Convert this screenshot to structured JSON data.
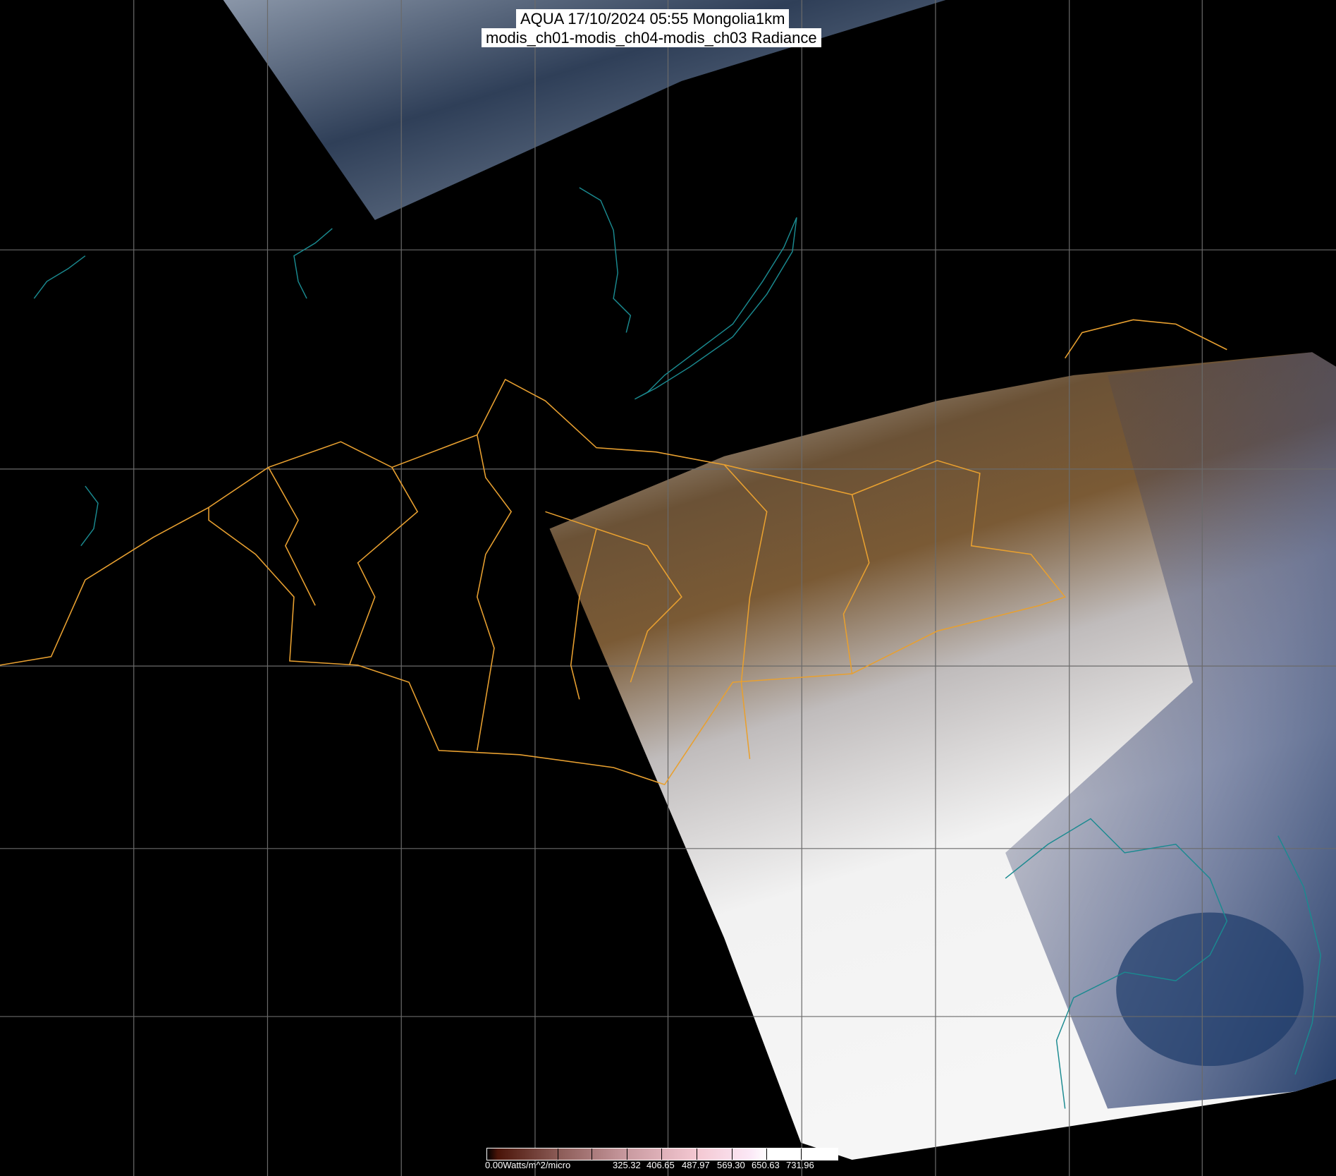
{
  "title": {
    "line1": "AQUA 17/10/2024 05:55 Mongolia1km",
    "line2": "modis_ch01-modis_ch04-modis_ch03 Radiance"
  },
  "colorbar": {
    "min_label": "0.00Watts/m^2/micro",
    "tick_labels": [
      "325.32",
      "406.65",
      "487.97",
      "569.30",
      "650.63",
      "731.96"
    ],
    "colors": {
      "low": "#4a1408",
      "mid": "#f4c8d2",
      "high": "#ffffff"
    }
  },
  "map": {
    "border_color": "#e8a030",
    "coastline_color": "#1a8a90",
    "grid_color": "#6a6a6a",
    "background": "#000000"
  }
}
